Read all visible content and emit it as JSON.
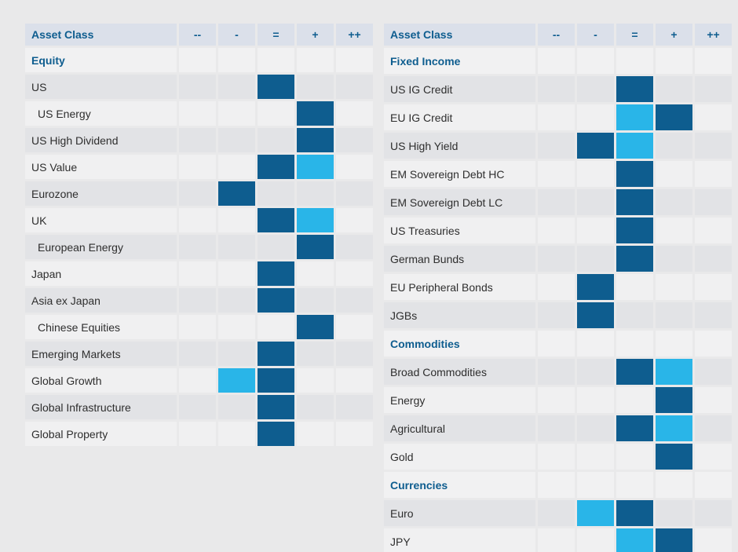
{
  "colors": {
    "dark_blue": "#0E5D8F",
    "light_blue": "#29B5E8"
  },
  "chart_data": {
    "type": "heatmap",
    "columns": [
      "--",
      "-",
      "=",
      "+",
      "++"
    ],
    "cell_fill_legend": {
      "dark": "#0E5D8F",
      "cyan": "#29B5E8"
    },
    "tables": [
      {
        "header": "Asset Class",
        "sections": [
          {
            "title": "Equity",
            "rows": [
              {
                "label": "US",
                "indent": false,
                "cells": [
                  "",
                  "",
                  "dark",
                  "",
                  ""
                ]
              },
              {
                "label": "US Energy",
                "indent": true,
                "cells": [
                  "",
                  "",
                  "",
                  "dark",
                  ""
                ]
              },
              {
                "label": "US High Dividend",
                "indent": false,
                "cells": [
                  "",
                  "",
                  "",
                  "dark",
                  ""
                ]
              },
              {
                "label": "US Value",
                "indent": false,
                "cells": [
                  "",
                  "",
                  "dark",
                  "cyan",
                  ""
                ]
              },
              {
                "label": "Eurozone",
                "indent": false,
                "cells": [
                  "",
                  "dark",
                  "",
                  "",
                  ""
                ]
              },
              {
                "label": "UK",
                "indent": false,
                "cells": [
                  "",
                  "",
                  "dark",
                  "cyan",
                  ""
                ]
              },
              {
                "label": "European Energy",
                "indent": true,
                "cells": [
                  "",
                  "",
                  "",
                  "dark",
                  ""
                ]
              },
              {
                "label": "Japan",
                "indent": false,
                "cells": [
                  "",
                  "",
                  "dark",
                  "",
                  ""
                ]
              },
              {
                "label": "Asia ex Japan",
                "indent": false,
                "cells": [
                  "",
                  "",
                  "dark",
                  "",
                  ""
                ]
              },
              {
                "label": "Chinese Equities",
                "indent": true,
                "cells": [
                  "",
                  "",
                  "",
                  "dark",
                  ""
                ]
              },
              {
                "label": "Emerging Markets",
                "indent": false,
                "cells": [
                  "",
                  "",
                  "dark",
                  "",
                  ""
                ]
              },
              {
                "label": "Global Growth",
                "indent": false,
                "cells": [
                  "",
                  "cyan",
                  "dark",
                  "",
                  ""
                ]
              },
              {
                "label": "Global Infrastructure",
                "indent": false,
                "cells": [
                  "",
                  "",
                  "dark",
                  "",
                  ""
                ]
              },
              {
                "label": "Global Property",
                "indent": false,
                "cells": [
                  "",
                  "",
                  "dark",
                  "",
                  ""
                ]
              }
            ]
          }
        ]
      },
      {
        "header": "Asset Class",
        "sections": [
          {
            "title": "Fixed Income",
            "rows": [
              {
                "label": "US IG Credit",
                "indent": false,
                "cells": [
                  "",
                  "",
                  "dark",
                  "",
                  ""
                ]
              },
              {
                "label": "EU IG Credit",
                "indent": false,
                "cells": [
                  "",
                  "",
                  "cyan",
                  "dark",
                  ""
                ]
              },
              {
                "label": "US High Yield",
                "indent": false,
                "cells": [
                  "",
                  "dark",
                  "cyan",
                  "",
                  ""
                ]
              },
              {
                "label": "EM Sovereign Debt HC",
                "indent": false,
                "cells": [
                  "",
                  "",
                  "dark",
                  "",
                  ""
                ]
              },
              {
                "label": "EM Sovereign Debt LC",
                "indent": false,
                "cells": [
                  "",
                  "",
                  "dark",
                  "",
                  ""
                ]
              },
              {
                "label": "US Treasuries",
                "indent": false,
                "cells": [
                  "",
                  "",
                  "dark",
                  "",
                  ""
                ]
              },
              {
                "label": "German Bunds",
                "indent": false,
                "cells": [
                  "",
                  "",
                  "dark",
                  "",
                  ""
                ]
              },
              {
                "label": "EU Peripheral Bonds",
                "indent": false,
                "cells": [
                  "",
                  "dark",
                  "",
                  "",
                  ""
                ]
              },
              {
                "label": "JGBs",
                "indent": false,
                "cells": [
                  "",
                  "dark",
                  "",
                  "",
                  ""
                ]
              }
            ]
          },
          {
            "title": "Commodities",
            "rows": [
              {
                "label": "Broad Commodities",
                "indent": false,
                "cells": [
                  "",
                  "",
                  "dark",
                  "cyan",
                  ""
                ]
              },
              {
                "label": "Energy",
                "indent": false,
                "cells": [
                  "",
                  "",
                  "",
                  "dark",
                  ""
                ]
              },
              {
                "label": "Agricultural",
                "indent": false,
                "cells": [
                  "",
                  "",
                  "dark",
                  "cyan",
                  ""
                ]
              },
              {
                "label": "Gold",
                "indent": false,
                "cells": [
                  "",
                  "",
                  "",
                  "dark",
                  ""
                ]
              }
            ]
          },
          {
            "title": "Currencies",
            "rows": [
              {
                "label": "Euro",
                "indent": false,
                "cells": [
                  "",
                  "cyan",
                  "dark",
                  "",
                  ""
                ]
              },
              {
                "label": "JPY",
                "indent": false,
                "cells": [
                  "",
                  "",
                  "cyan",
                  "dark",
                  ""
                ]
              }
            ]
          }
        ]
      }
    ]
  }
}
